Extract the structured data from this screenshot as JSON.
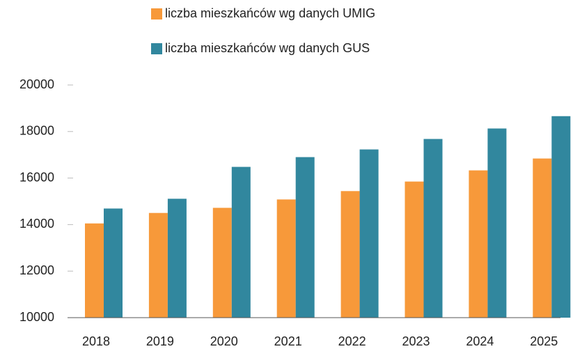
{
  "chart_data": {
    "type": "bar",
    "categories": [
      "2018",
      "2019",
      "2020",
      "2021",
      "2022",
      "2023",
      "2024",
      "2025"
    ],
    "series": [
      {
        "name": "liczba mieszkańców wg danych UMIG",
        "color": "#f7993a",
        "values": [
          14050,
          14500,
          14720,
          15080,
          15440,
          15850,
          16330,
          16840
        ]
      },
      {
        "name": "liczba mieszkańców wg danych GUS",
        "color": "#31879e",
        "values": [
          14690,
          15110,
          16480,
          16900,
          17230,
          17680,
          18130,
          18660
        ]
      }
    ],
    "ylim": [
      10000,
      20000
    ],
    "yticks": [
      10000,
      12000,
      14000,
      16000,
      18000,
      20000
    ],
    "grid": false,
    "legend": "top"
  }
}
